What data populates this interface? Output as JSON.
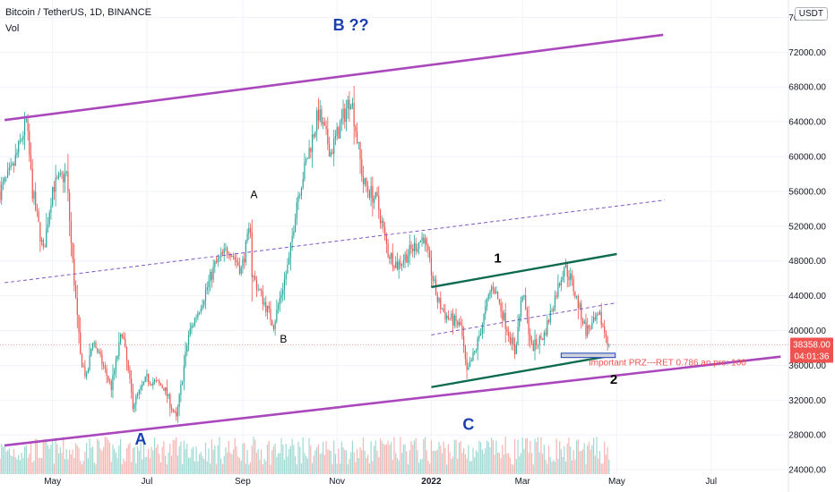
{
  "header": {
    "title": "Bitcoin / TetherUS, 1D, BINANCE",
    "indicator": "Vol",
    "currency_badge": "USDT"
  },
  "colors": {
    "up": "#26a69a",
    "down": "#ef5350",
    "channel": "#ab47bc",
    "wedge": "#0b6b4e",
    "midline": "#7e57c2",
    "label_blue": "#1a3fb0",
    "price_tag": "#ef5350",
    "vol_up": "#9fd9d3",
    "vol_down": "#f7b5b3"
  },
  "chart_data": {
    "type": "candlestick",
    "symbol": "Bitcoin / TetherUS",
    "interval": "1D",
    "exchange": "BINANCE",
    "x_axis_labels": [
      "May",
      "Jul",
      "Sep",
      "Nov",
      "2022",
      "Mar",
      "May",
      "Jul"
    ],
    "x_axis_dates": [
      "2021-05-01",
      "2021-07-01",
      "2021-09-01",
      "2021-11-01",
      "2022-01-01",
      "2022-03-01",
      "2022-05-01",
      "2022-07-01"
    ],
    "x_range": [
      "2021-03-28",
      "2022-08-20"
    ],
    "y_axis_labels": [
      "24000.00",
      "28000.00",
      "32000.00",
      "36000.00",
      "40000.00",
      "44000.00",
      "48000.00",
      "52000.00",
      "56000.00",
      "60000.00",
      "64000.00",
      "68000.00",
      "72000.00",
      "76000.00"
    ],
    "y_range": [
      23500,
      78000
    ],
    "current_price": "38358.00",
    "countdown": "04:01:36",
    "price_path": [
      [
        "2021-03-28",
        56000
      ],
      [
        "2021-04-05",
        58500
      ],
      [
        "2021-04-14",
        64000
      ],
      [
        "2021-04-18",
        56000
      ],
      [
        "2021-04-25",
        49000
      ],
      [
        "2021-05-01",
        56500
      ],
      [
        "2021-05-10",
        58000
      ],
      [
        "2021-05-13",
        50000
      ],
      [
        "2021-05-19",
        37000
      ],
      [
        "2021-05-23",
        34500
      ],
      [
        "2021-05-27",
        39000
      ],
      [
        "2021-06-08",
        33500
      ],
      [
        "2021-06-15",
        40000
      ],
      [
        "2021-06-22",
        31500
      ],
      [
        "2021-07-01",
        34500
      ],
      [
        "2021-07-12",
        33500
      ],
      [
        "2021-07-20",
        29800
      ],
      [
        "2021-07-28",
        39500
      ],
      [
        "2021-08-07",
        44000
      ],
      [
        "2021-08-14",
        47500
      ],
      [
        "2021-08-23",
        49500
      ],
      [
        "2021-08-31",
        47000
      ],
      [
        "2021-09-06",
        52000
      ],
      [
        "2021-09-07",
        46500
      ],
      [
        "2021-09-21",
        40700
      ],
      [
        "2021-10-01",
        48000
      ],
      [
        "2021-10-06",
        55000
      ],
      [
        "2021-10-20",
        65000
      ],
      [
        "2021-10-28",
        60500
      ],
      [
        "2021-11-10",
        67000
      ],
      [
        "2021-11-18",
        57000
      ],
      [
        "2021-11-27",
        54800
      ],
      [
        "2021-12-04",
        49000
      ],
      [
        "2021-12-10",
        47500
      ],
      [
        "2021-12-27",
        50800
      ],
      [
        "2022-01-05",
        43500
      ],
      [
        "2022-01-10",
        41800
      ],
      [
        "2022-01-20",
        40500
      ],
      [
        "2022-01-24",
        35000
      ],
      [
        "2022-01-30",
        38000
      ],
      [
        "2022-02-08",
        44500
      ],
      [
        "2022-02-10",
        45300
      ],
      [
        "2022-02-24",
        37500
      ],
      [
        "2022-03-01",
        44400
      ],
      [
        "2022-03-07",
        38000
      ],
      [
        "2022-03-15",
        39500
      ],
      [
        "2022-03-28",
        47500
      ],
      [
        "2022-04-01",
        46000
      ],
      [
        "2022-04-11",
        40000
      ],
      [
        "2022-04-20",
        41500
      ],
      [
        "2022-04-26",
        38358
      ]
    ],
    "annotations": [
      {
        "text": "B ??",
        "date": "2021-11-10",
        "price": 74500,
        "color": "label_blue",
        "size": 18
      },
      {
        "text": "A",
        "date": "2021-09-06",
        "price": 55200,
        "color": "black",
        "size": 12
      },
      {
        "text": "B",
        "date": "2021-09-25",
        "price": 38600,
        "color": "black",
        "size": 12
      },
      {
        "text": "1",
        "date": "2022-02-13",
        "price": 47800,
        "color": "black",
        "size": 15
      },
      {
        "text": "2",
        "date": "2022-04-29",
        "price": 33900,
        "color": "black",
        "size": 15
      },
      {
        "text": "C",
        "date": "2022-01-25",
        "price": 28600,
        "color": "label_blue",
        "size": 18
      },
      {
        "text": "A",
        "date": "2021-06-27",
        "price": 26900,
        "color": "label_blue",
        "size": 18
      },
      {
        "text": "important PRZ---RET 0.786 an pro: 100",
        "date": "2022-04-13",
        "price": 36000,
        "color": "price_tag",
        "size": 10
      }
    ],
    "trend_lines": [
      {
        "role": "channel-top",
        "style": "solid",
        "from": [
          "2021-03-31",
          64200
        ],
        "to": [
          "2022-05-31",
          74000
        ]
      },
      {
        "role": "channel-bottom",
        "style": "solid",
        "from": [
          "2021-03-31",
          26800
        ],
        "to": [
          "2022-08-15",
          37000
        ]
      },
      {
        "role": "channel-mid",
        "style": "dashed",
        "from": [
          "2021-03-31",
          45500
        ],
        "to": [
          "2022-06-01",
          55000
        ]
      },
      {
        "role": "wedge-top",
        "style": "solid-green",
        "from": [
          "2022-01-01",
          45000
        ],
        "to": [
          "2022-05-01",
          48800
        ]
      },
      {
        "role": "wedge-bottom",
        "style": "solid-green",
        "from": [
          "2022-01-01",
          33500
        ],
        "to": [
          "2022-04-30",
          37200
        ]
      },
      {
        "role": "wedge-mid",
        "style": "dashed",
        "from": [
          "2022-01-01",
          39500
        ],
        "to": [
          "2022-05-01",
          43200
        ]
      }
    ],
    "prz_zone": {
      "from": [
        "2022-03-26",
        37400
      ],
      "to": [
        "2022-04-30",
        36900
      ]
    },
    "volume_scale": "relative",
    "grid": true
  }
}
